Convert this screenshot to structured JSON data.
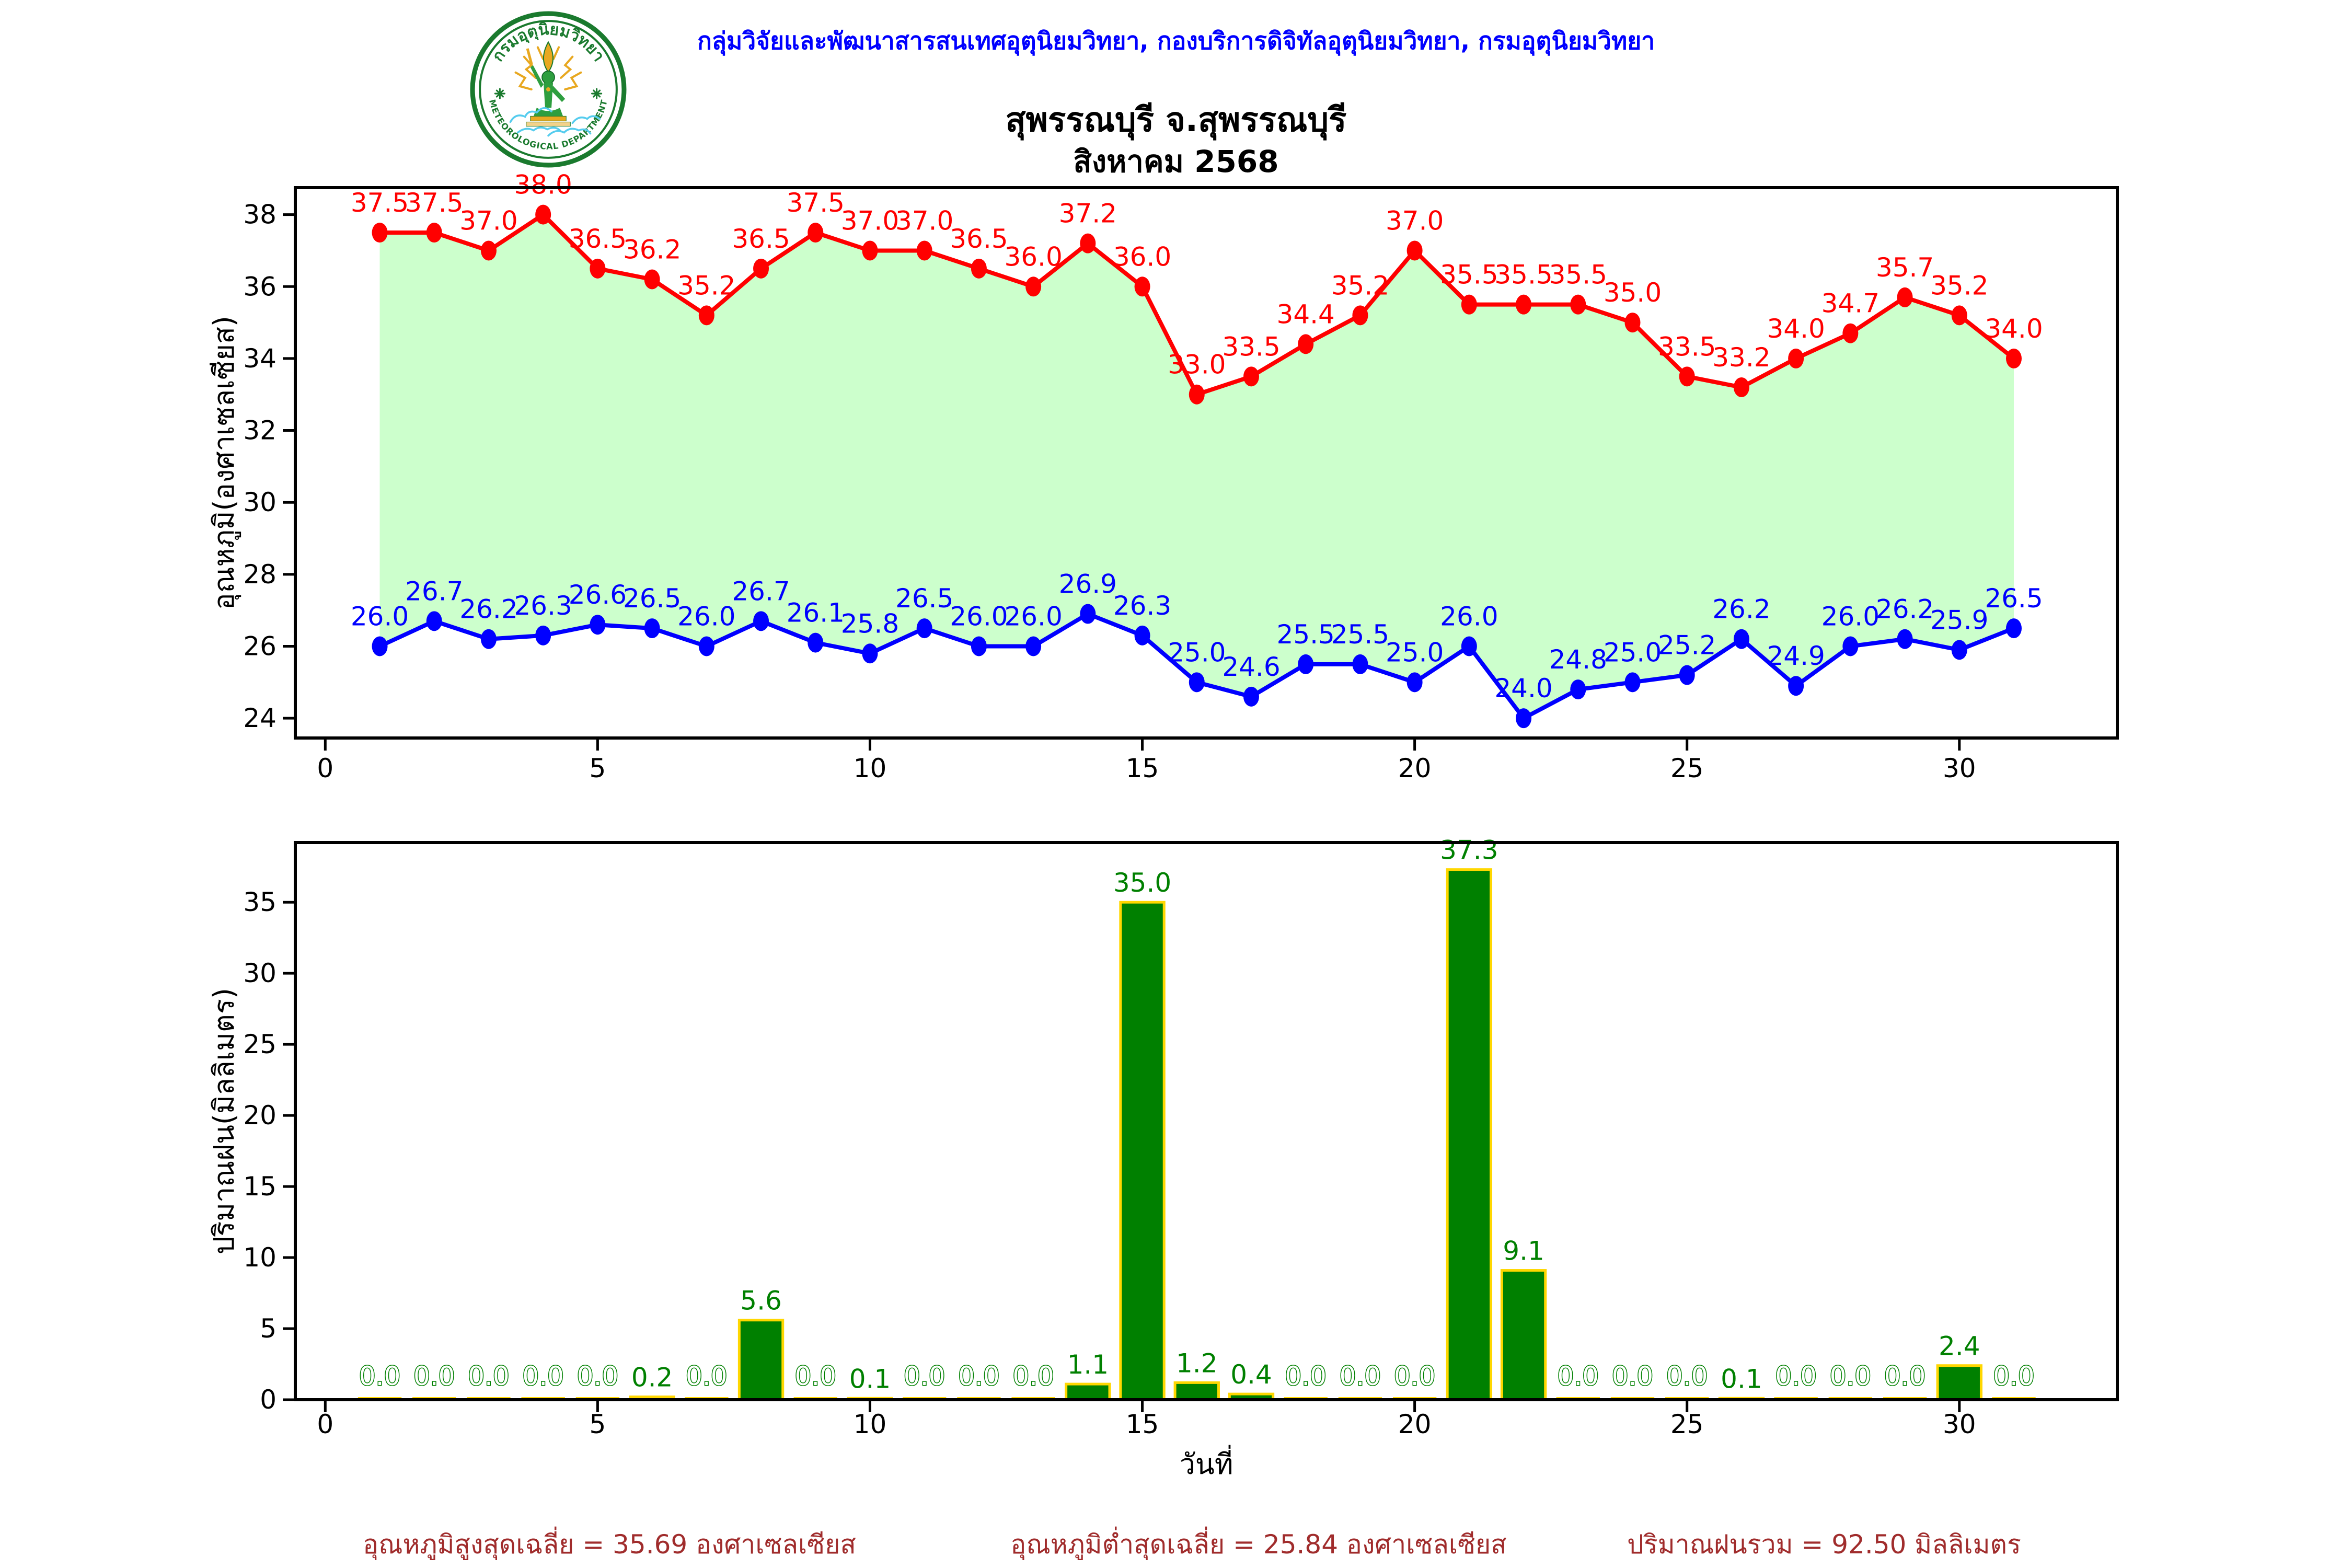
{
  "header": {
    "department_line": "กลุ่มวิจัยและพัฒนาสารสนเทศอุตุนิยมวิทยา, กองบริการดิจิทัลอุตุนิยมวิทยา, กรมอุตุนิยมวิทยา",
    "department_line_color": "#0000ff",
    "title": "สุพรรณบุรี จ.สุพรรณบุรี",
    "subtitle": "สิงหาคม 2568"
  },
  "logo": {
    "thai_text": "กรมอุตุนิยมวิทยา",
    "english_text": "METEOROLOGICAL DEPARTMENT",
    "ring_color": "#1a7a2e",
    "figure_color": "#2e9e3f",
    "gold_color": "#e8a820",
    "cloud_color": "#55ccee"
  },
  "chart_data": [
    {
      "type": "line",
      "x": [
        1,
        2,
        3,
        4,
        5,
        6,
        7,
        8,
        9,
        10,
        11,
        12,
        13,
        14,
        15,
        16,
        17,
        18,
        19,
        20,
        21,
        22,
        23,
        24,
        25,
        26,
        27,
        28,
        29,
        30,
        31
      ],
      "series": [
        {
          "name": "max-temperature",
          "color": "#ff0000",
          "values": [
            37.5,
            37.5,
            37.0,
            38.0,
            36.5,
            36.2,
            35.2,
            36.5,
            37.5,
            37.0,
            37.0,
            36.5,
            36.0,
            37.2,
            36.0,
            33.0,
            33.5,
            34.4,
            35.2,
            37.0,
            35.5,
            35.5,
            35.5,
            35.0,
            33.5,
            33.2,
            34.0,
            34.7,
            35.7,
            35.2,
            34.0
          ]
        },
        {
          "name": "min-temperature",
          "color": "#0000ff",
          "values": [
            26.0,
            26.7,
            26.2,
            26.3,
            26.6,
            26.5,
            26.0,
            26.7,
            26.1,
            25.8,
            26.5,
            26.0,
            26.0,
            26.9,
            26.3,
            25.0,
            24.6,
            25.5,
            25.5,
            25.0,
            26.0,
            24.0,
            24.8,
            25.0,
            25.2,
            26.2,
            24.9,
            26.0,
            26.2,
            25.9,
            26.5
          ]
        }
      ],
      "fill_between_color": "#ccffcc",
      "title": "",
      "xlabel": "",
      "ylabel": "อุณหภูมิ(องศาเซลเซียส)",
      "yticks": [
        24,
        26,
        28,
        30,
        32,
        34,
        36,
        38
      ],
      "xticks": [
        0,
        5,
        10,
        15,
        20,
        25,
        30
      ],
      "ylim": [
        23.45,
        38.75
      ],
      "xlim": [
        -0.55,
        32.9
      ],
      "grid": false,
      "legend_position": "none"
    },
    {
      "type": "bar",
      "x": [
        1,
        2,
        3,
        4,
        5,
        6,
        7,
        8,
        9,
        10,
        11,
        12,
        13,
        14,
        15,
        16,
        17,
        18,
        19,
        20,
        21,
        22,
        23,
        24,
        25,
        26,
        27,
        28,
        29,
        30,
        31
      ],
      "values": [
        0.0,
        0.0,
        0.0,
        0.0,
        0.0,
        0.2,
        0.0,
        5.6,
        0.0,
        0.1,
        0.0,
        0.0,
        0.0,
        1.1,
        35.0,
        1.2,
        0.4,
        0.0,
        0.0,
        0.0,
        37.3,
        9.1,
        0.0,
        0.0,
        0.0,
        0.1,
        0.0,
        0.0,
        0.0,
        2.4,
        0.0
      ],
      "bar_color": "#008000",
      "bar_edge_color": "#ffd700",
      "value_label_color": "#008000",
      "zero_label_style": "hollow-outline",
      "title": "",
      "xlabel": "วันที่",
      "ylabel": "ปริมาณฝน(มิลลิเมตร)",
      "yticks": [
        0,
        5,
        10,
        15,
        20,
        25,
        30,
        35
      ],
      "xticks": [
        0,
        5,
        10,
        15,
        20,
        25,
        30
      ],
      "ylim": [
        0,
        39.2
      ],
      "xlim": [
        -0.55,
        32.9
      ],
      "grid": false
    }
  ],
  "summary": {
    "avg_max_text": "อุณหภูมิสูงสุดเฉลี่ย = 35.69 องศาเซลเซียส",
    "avg_min_text": "อุณหภูมิต่ำสุดเฉลี่ย = 25.84 องศาเซลเซียส",
    "rain_total_text": "ปริมาณฝนรวม = 92.50 มิลลิเมตร",
    "color": "#a02c2c"
  }
}
